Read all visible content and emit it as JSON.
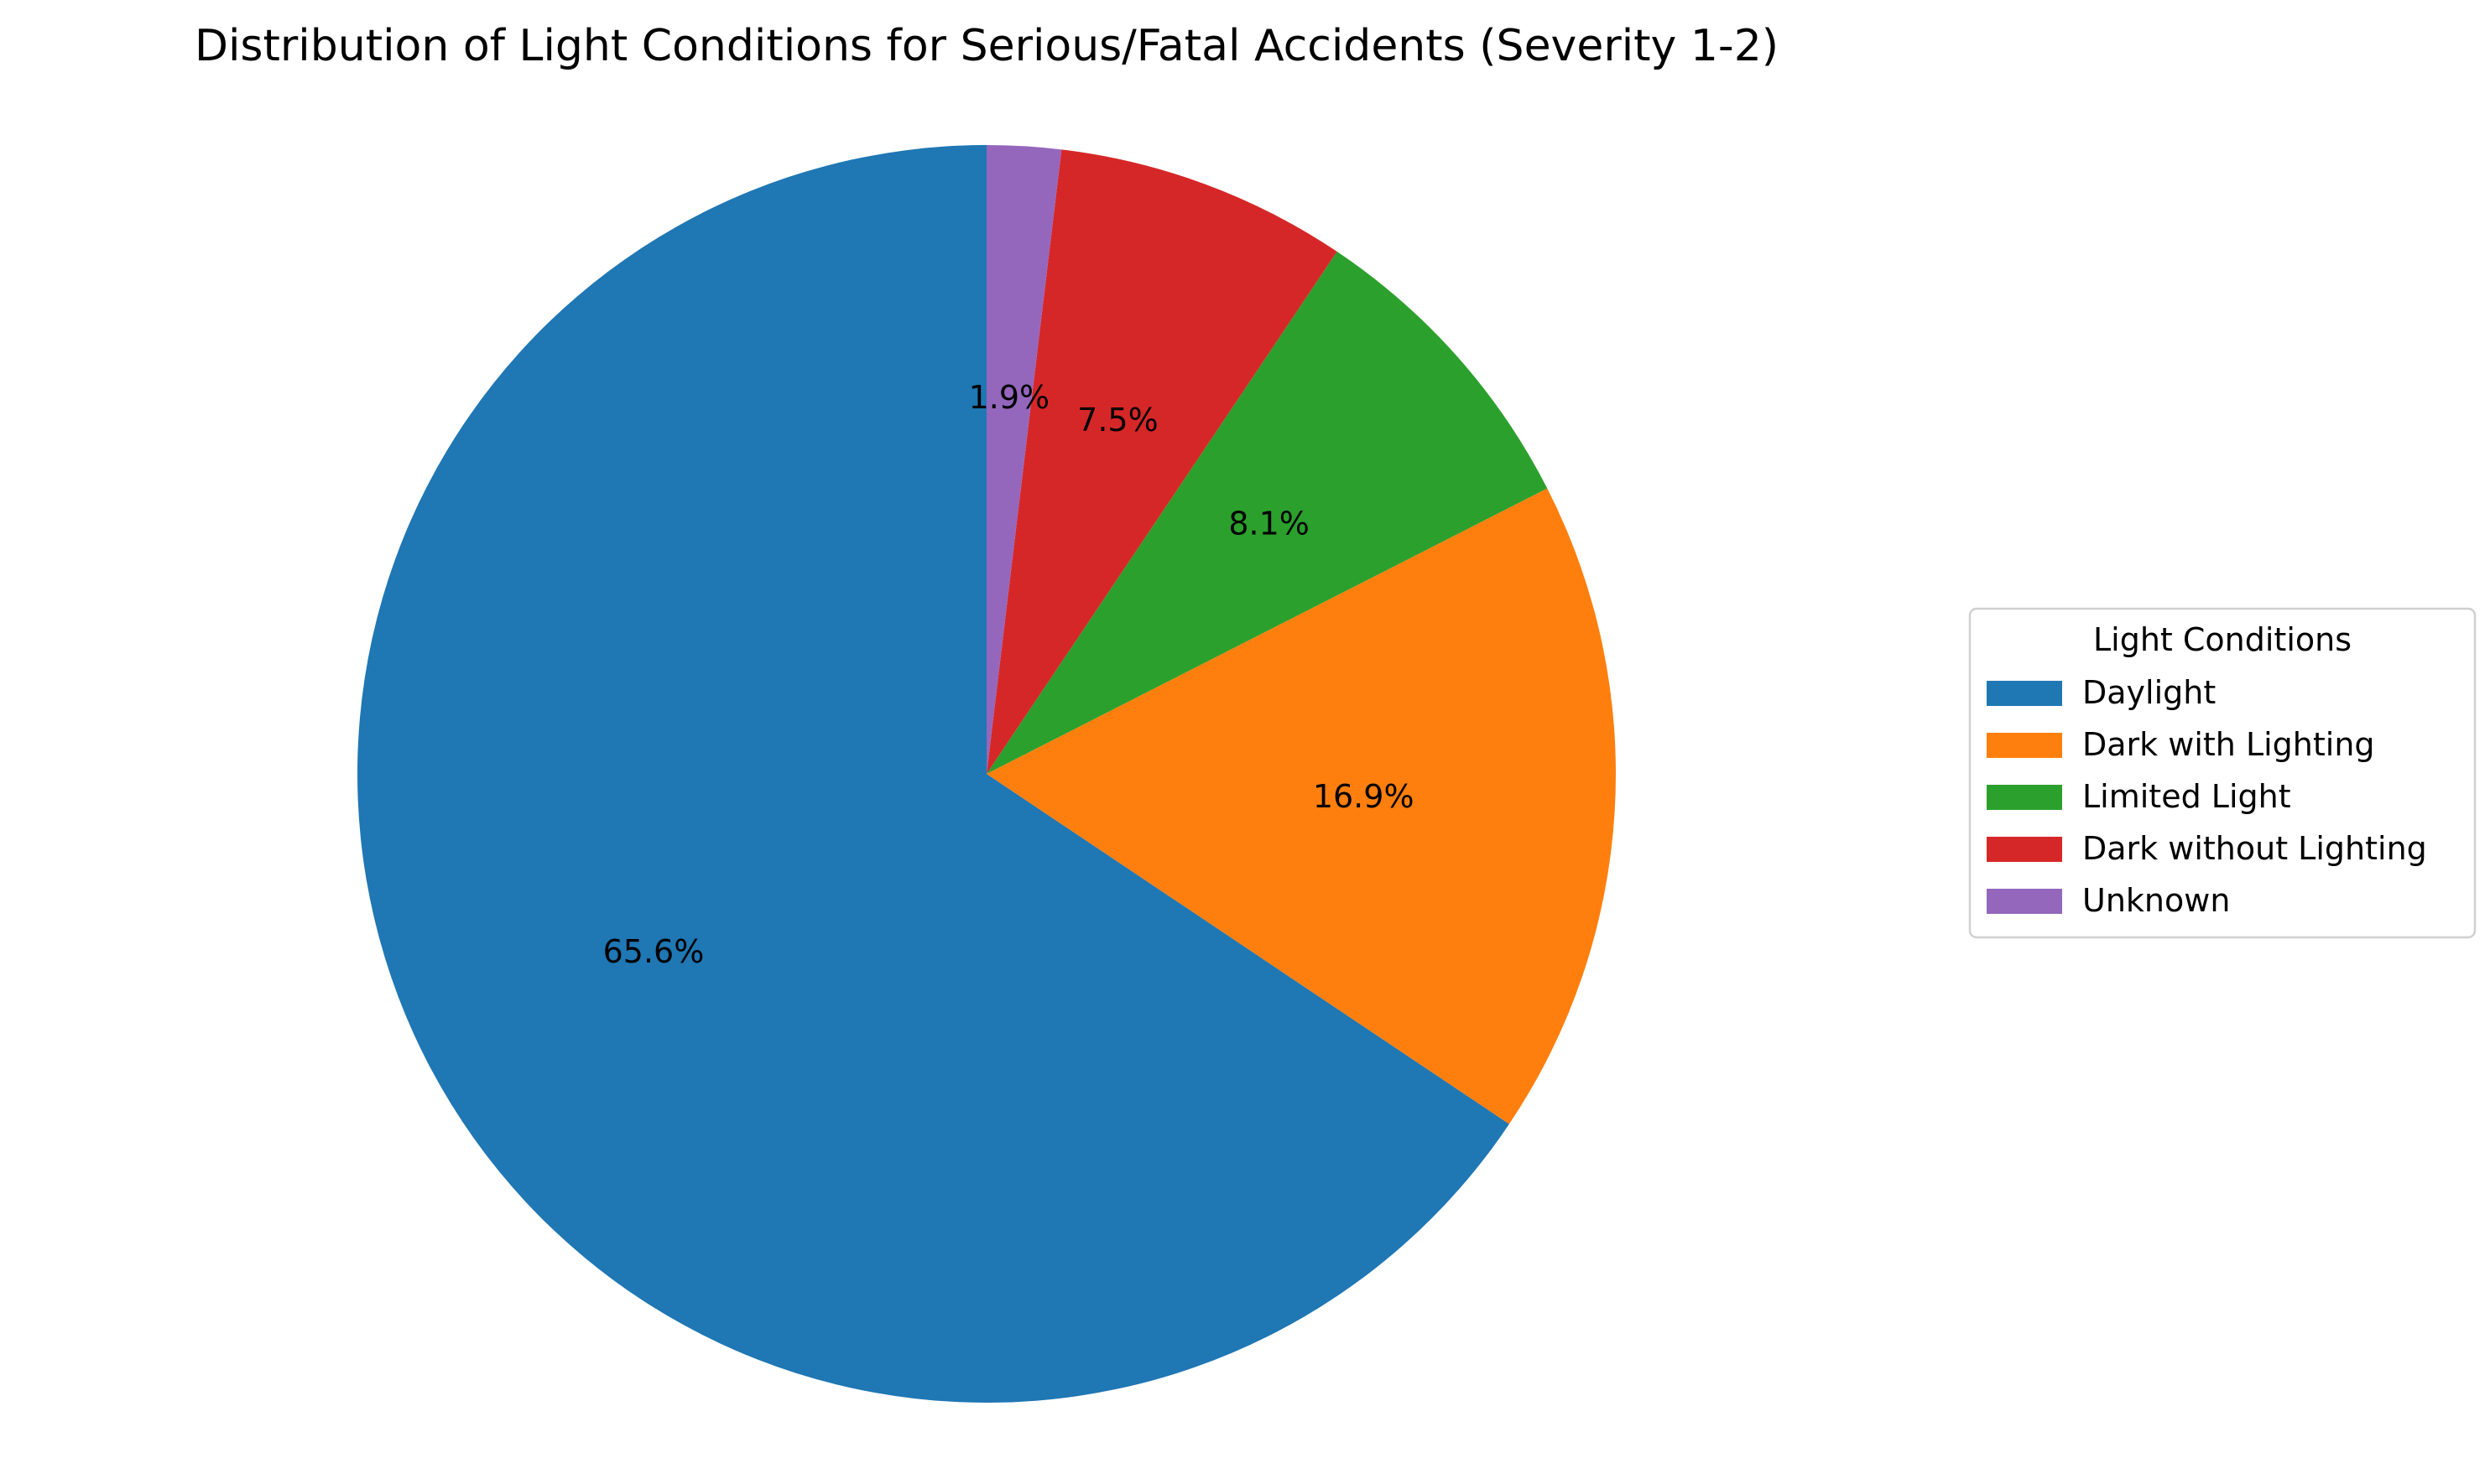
{
  "chart_data": {
    "type": "pie",
    "title": "Distribution of Light Conditions for Serious/Fatal Accidents (Severity 1-2)",
    "legend_title": "Light Conditions",
    "legend_placement": "center-right",
    "start_angle_deg": 90,
    "direction": "counterclockwise",
    "slices": [
      {
        "label": "Daylight",
        "value": 65.6,
        "pct_label": "65.6%",
        "color": "#1f77b4"
      },
      {
        "label": "Dark with Lighting",
        "value": 16.9,
        "pct_label": "16.9%",
        "color": "#ff7f0e"
      },
      {
        "label": "Limited Light",
        "value": 8.1,
        "pct_label": "8.1%",
        "color": "#2ca02c"
      },
      {
        "label": "Dark without Lighting",
        "value": 7.5,
        "pct_label": "7.5%",
        "color": "#d62728"
      },
      {
        "label": "Unknown",
        "value": 1.9,
        "pct_label": "1.9%",
        "color": "#9467bd"
      }
    ]
  }
}
